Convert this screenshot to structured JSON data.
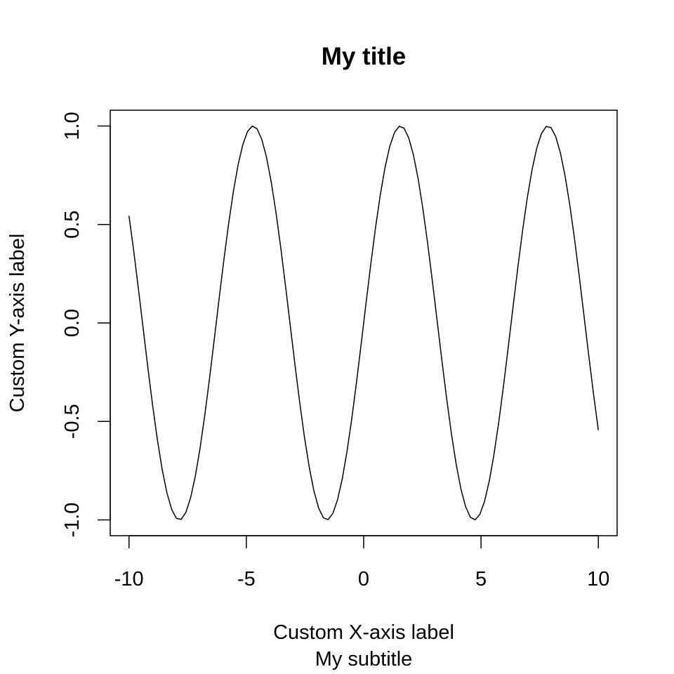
{
  "chart_data": {
    "type": "line",
    "title": "My title",
    "subtitle": "My subtitle",
    "xlabel": "Custom X-axis label",
    "ylabel": "Custom Y-axis label",
    "xlim": [
      -10.8,
      10.8
    ],
    "ylim": [
      -1.08,
      1.08
    ],
    "x_ticks": [
      -10,
      -5,
      0,
      5,
      10
    ],
    "x_tick_labels": [
      "-10",
      "-5",
      "0",
      "5",
      "10"
    ],
    "y_ticks": [
      -1,
      -0.5,
      0,
      0.5,
      1
    ],
    "y_tick_labels": [
      "-1.0",
      "-0.5",
      "0.0",
      "0.5",
      "1.0"
    ],
    "grid": false,
    "series": [
      {
        "function": "sin(x)",
        "x_range": [
          -10,
          10
        ],
        "samples": 100,
        "color": "#000000"
      }
    ]
  }
}
